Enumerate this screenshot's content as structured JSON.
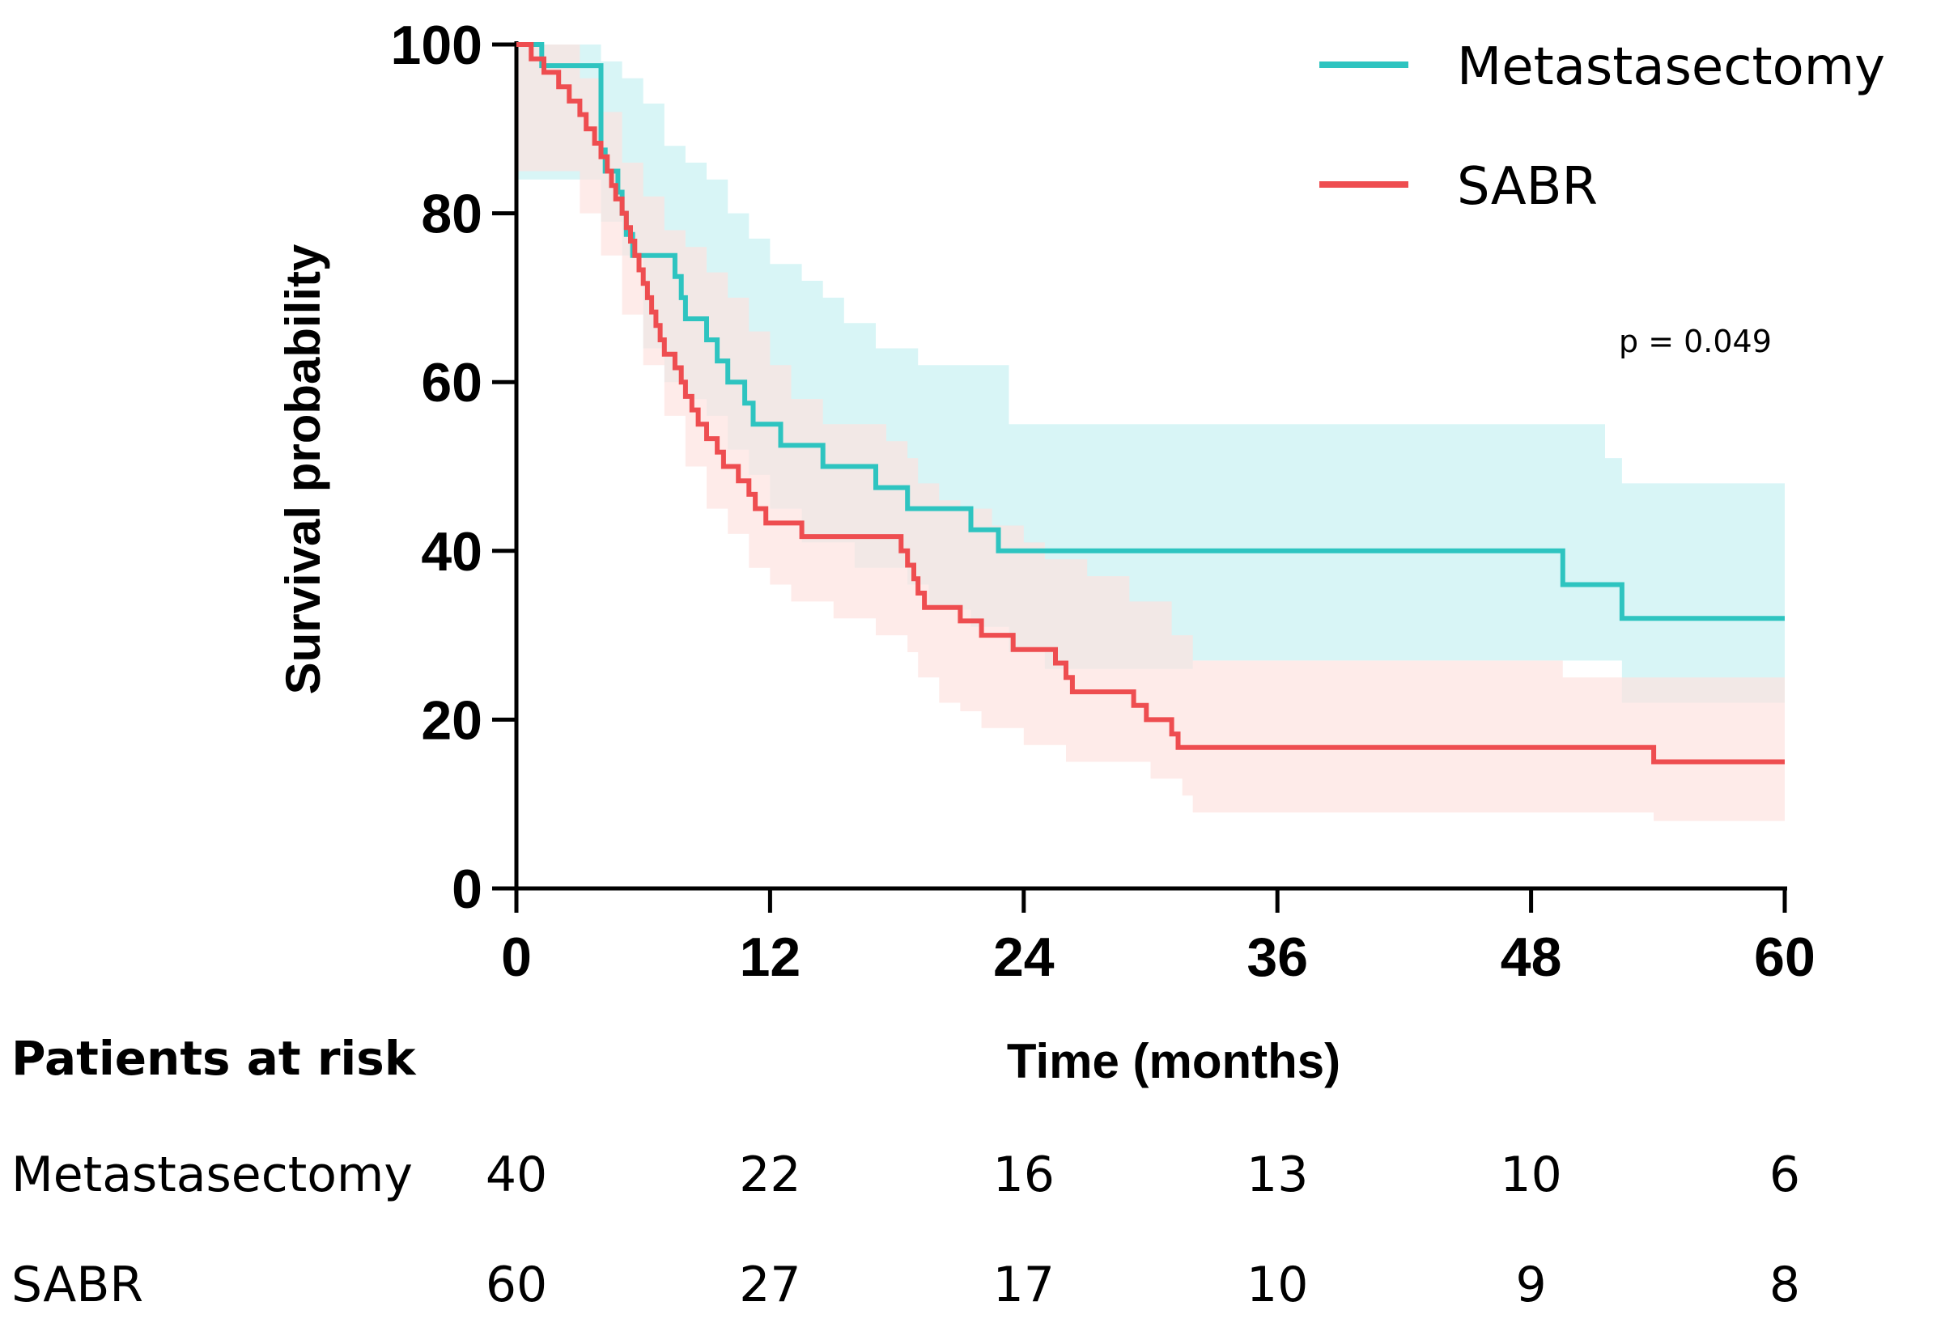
{
  "chart_data": {
    "type": "line",
    "subtype": "kaplan-meier",
    "xlabel": "Time (months)",
    "ylabel": "Survival probability",
    "xlim": [
      0,
      60
    ],
    "ylim": [
      0,
      100
    ],
    "xticks": [
      "0",
      "12",
      "24",
      "36",
      "48",
      "60"
    ],
    "yticks": [
      "0",
      "20",
      "40",
      "60",
      "80",
      "100"
    ],
    "legend_position": "top-right",
    "p_value_text": "p = 0.049",
    "series": [
      {
        "name": "Metastasectomy",
        "color": "#2ec4c0",
        "band_color": "#c8f1f2",
        "steps": [
          [
            0,
            100
          ],
          [
            1.2,
            97.5
          ],
          [
            4,
            95
          ],
          [
            4,
            92.5
          ],
          [
            4,
            87.5
          ],
          [
            4.2,
            85
          ],
          [
            4.8,
            82.5
          ],
          [
            5,
            80
          ],
          [
            5.2,
            77.5
          ],
          [
            5.5,
            75
          ],
          [
            7.5,
            72.5
          ],
          [
            7.8,
            70
          ],
          [
            8,
            67.5
          ],
          [
            9,
            65
          ],
          [
            9.5,
            62.5
          ],
          [
            10,
            60
          ],
          [
            10.8,
            57.5
          ],
          [
            11.2,
            55
          ],
          [
            12.5,
            52.5
          ],
          [
            14.5,
            50
          ],
          [
            17,
            47.5
          ],
          [
            18.5,
            45
          ],
          [
            21.5,
            42.5
          ],
          [
            22.8,
            40
          ],
          [
            49.5,
            36
          ],
          [
            52.3,
            32
          ],
          [
            60,
            32
          ]
        ],
        "ci_upper": [
          [
            0,
            100
          ],
          [
            2.5,
            100
          ],
          [
            4,
            98
          ],
          [
            5,
            96
          ],
          [
            6,
            93
          ],
          [
            7,
            88
          ],
          [
            8,
            86
          ],
          [
            9,
            84
          ],
          [
            10,
            80
          ],
          [
            11,
            77
          ],
          [
            12,
            74
          ],
          [
            13.5,
            72
          ],
          [
            14.5,
            70
          ],
          [
            15.5,
            67
          ],
          [
            17,
            64
          ],
          [
            19,
            62
          ],
          [
            23.3,
            55
          ],
          [
            49.5,
            55
          ],
          [
            51.5,
            51
          ],
          [
            52.3,
            48
          ],
          [
            60,
            48
          ]
        ],
        "ci_lower": [
          [
            0,
            84
          ],
          [
            2,
            84
          ],
          [
            4,
            79
          ],
          [
            5,
            75
          ],
          [
            6,
            64
          ],
          [
            7,
            60
          ],
          [
            8,
            58
          ],
          [
            9,
            56
          ],
          [
            10,
            52
          ],
          [
            11,
            49
          ],
          [
            12,
            45
          ],
          [
            13.5,
            41
          ],
          [
            16,
            38
          ],
          [
            18.5,
            36
          ],
          [
            19.5,
            33
          ],
          [
            21.5,
            31
          ],
          [
            23.3,
            28
          ],
          [
            25,
            26
          ],
          [
            28,
            26
          ],
          [
            32,
            27
          ],
          [
            49.5,
            27
          ],
          [
            52.3,
            22
          ],
          [
            60,
            17
          ]
        ]
      },
      {
        "name": "SABR",
        "color": "#ee4d50",
        "band_color": "#fde2e0",
        "steps": [
          [
            0,
            100
          ],
          [
            0.7,
            98.3
          ],
          [
            1.3,
            96.7
          ],
          [
            2,
            95
          ],
          [
            2.5,
            93.3
          ],
          [
            3,
            91.7
          ],
          [
            3.3,
            90
          ],
          [
            3.7,
            88.3
          ],
          [
            4,
            86.7
          ],
          [
            4.3,
            85
          ],
          [
            4.5,
            83.3
          ],
          [
            4.7,
            81.7
          ],
          [
            5,
            80
          ],
          [
            5.2,
            78.3
          ],
          [
            5.4,
            76.7
          ],
          [
            5.6,
            75
          ],
          [
            5.8,
            73.3
          ],
          [
            6,
            71.7
          ],
          [
            6.2,
            70
          ],
          [
            6.4,
            68.3
          ],
          [
            6.6,
            66.7
          ],
          [
            6.8,
            65
          ],
          [
            7,
            63.3
          ],
          [
            7.5,
            61.7
          ],
          [
            7.8,
            60
          ],
          [
            8,
            58.3
          ],
          [
            8.3,
            56.7
          ],
          [
            8.6,
            55
          ],
          [
            9,
            53.3
          ],
          [
            9.5,
            51.7
          ],
          [
            9.8,
            50
          ],
          [
            10.5,
            48.3
          ],
          [
            11,
            46.7
          ],
          [
            11.3,
            45
          ],
          [
            11.8,
            43.3
          ],
          [
            13.5,
            41.7
          ],
          [
            18.2,
            40
          ],
          [
            18.5,
            38.3
          ],
          [
            18.8,
            36.7
          ],
          [
            19,
            35
          ],
          [
            19.3,
            33.3
          ],
          [
            21,
            31.7
          ],
          [
            22,
            30
          ],
          [
            23.5,
            28.3
          ],
          [
            25.5,
            26.7
          ],
          [
            26,
            25
          ],
          [
            26.3,
            23.3
          ],
          [
            29.2,
            21.7
          ],
          [
            29.8,
            20
          ],
          [
            31,
            18.3
          ],
          [
            31.3,
            16.7
          ],
          [
            53.8,
            15
          ],
          [
            60,
            15
          ]
        ],
        "ci_upper": [
          [
            0,
            100
          ],
          [
            2,
            100
          ],
          [
            3,
            96
          ],
          [
            4,
            92
          ],
          [
            5,
            86
          ],
          [
            6,
            82
          ],
          [
            7,
            78
          ],
          [
            8,
            76
          ],
          [
            9,
            73
          ],
          [
            10,
            70
          ],
          [
            11,
            66
          ],
          [
            12,
            62
          ],
          [
            13,
            58
          ],
          [
            14.5,
            55
          ],
          [
            17.5,
            53
          ],
          [
            18.5,
            51
          ],
          [
            19,
            48
          ],
          [
            20,
            46
          ],
          [
            21,
            45
          ],
          [
            22.5,
            43
          ],
          [
            24,
            41
          ],
          [
            25,
            39
          ],
          [
            27,
            37
          ],
          [
            29,
            34
          ],
          [
            31,
            30
          ],
          [
            32,
            27
          ],
          [
            49.5,
            25
          ],
          [
            60,
            25
          ]
        ],
        "ci_lower": [
          [
            0,
            85
          ],
          [
            2,
            85
          ],
          [
            3,
            80
          ],
          [
            4,
            75
          ],
          [
            5,
            68
          ],
          [
            6,
            62
          ],
          [
            7,
            56
          ],
          [
            8,
            50
          ],
          [
            9,
            45
          ],
          [
            10,
            42
          ],
          [
            11,
            38
          ],
          [
            12,
            36
          ],
          [
            13,
            34
          ],
          [
            15,
            32
          ],
          [
            17,
            30
          ],
          [
            18.5,
            28
          ],
          [
            19,
            25
          ],
          [
            20,
            22
          ],
          [
            21,
            21
          ],
          [
            22,
            19
          ],
          [
            24,
            17
          ],
          [
            26,
            15
          ],
          [
            30,
            13
          ],
          [
            31.5,
            11
          ],
          [
            32,
            9
          ],
          [
            40,
            9
          ],
          [
            53.8,
            8
          ],
          [
            60,
            7
          ]
        ]
      }
    ],
    "risk_table": {
      "header": "Patients at risk",
      "times": [
        0,
        12,
        24,
        36,
        48,
        60
      ],
      "rows": [
        {
          "label": "Metastasectomy",
          "values": [
            "40",
            "22",
            "16",
            "13",
            "10",
            "6"
          ]
        },
        {
          "label": "SABR",
          "values": [
            "60",
            "27",
            "17",
            "10",
            "9",
            "8"
          ]
        }
      ]
    }
  }
}
